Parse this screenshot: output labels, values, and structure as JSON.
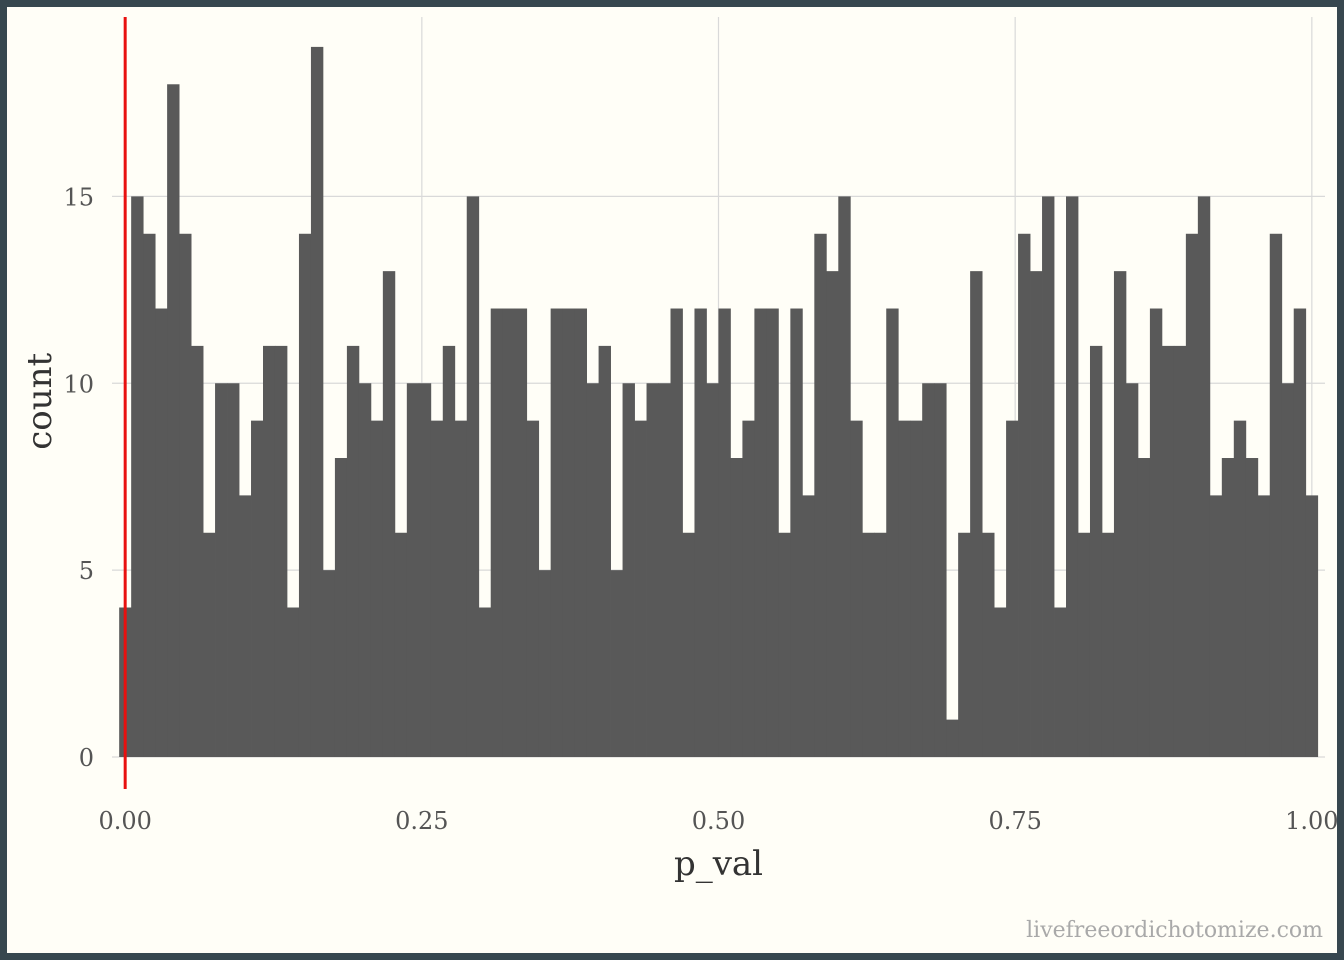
{
  "chart_data": {
    "type": "bar",
    "subtype": "histogram",
    "xlabel": "p_val",
    "ylabel": "count",
    "xlim": [
      -0.0111,
      1.0111
    ],
    "ylim": [
      0,
      19.8
    ],
    "x_ticks": [
      0.0,
      0.25,
      0.5,
      0.75,
      1.0
    ],
    "x_tick_labels": [
      "0.00",
      "0.25",
      "0.50",
      "0.75",
      "1.00"
    ],
    "y_ticks": [
      0,
      5,
      10,
      15
    ],
    "y_tick_labels": [
      "0",
      "5",
      "10",
      "15"
    ],
    "bin_width": 0.0101,
    "first_bin_center": 0.0,
    "values": [
      4,
      15,
      14,
      12,
      18,
      14,
      11,
      6,
      10,
      10,
      7,
      9,
      11,
      11,
      4,
      14,
      19,
      5,
      8,
      11,
      10,
      9,
      13,
      6,
      10,
      10,
      9,
      11,
      9,
      15,
      4,
      12,
      12,
      12,
      9,
      5,
      12,
      12,
      12,
      10,
      11,
      5,
      10,
      9,
      10,
      10,
      12,
      6,
      12,
      10,
      12,
      8,
      9,
      12,
      12,
      6,
      12,
      7,
      14,
      13,
      15,
      9,
      6,
      6,
      12,
      9,
      9,
      10,
      10,
      1,
      6,
      13,
      6,
      4,
      9,
      14,
      13,
      15,
      4,
      15,
      6,
      11,
      6,
      13,
      10,
      8,
      12,
      11,
      11,
      14,
      15,
      7,
      8,
      9,
      8,
      7,
      14,
      10,
      12,
      7
    ],
    "vline": {
      "x": 0.0,
      "color": "#e8100f"
    },
    "bar_color": "#595959",
    "background_color": "#fffef7",
    "grid": true,
    "legend": "none"
  },
  "watermark": "livefreeordichotomize.com"
}
